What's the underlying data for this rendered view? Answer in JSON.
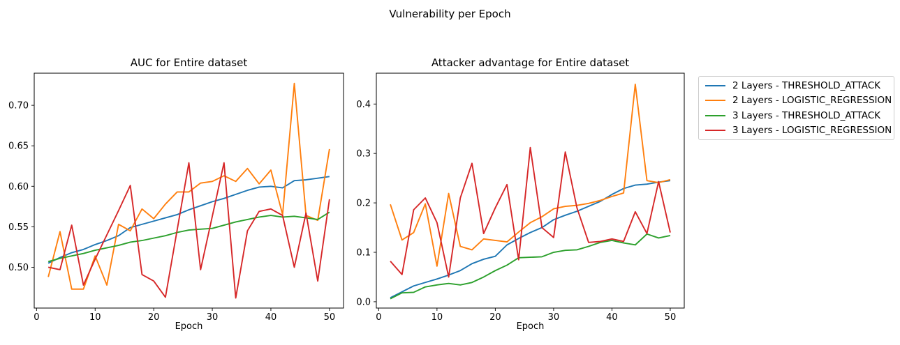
{
  "figure": {
    "suptitle": "Vulnerability per Epoch",
    "background": "#ffffff"
  },
  "legend": {
    "entries": [
      {
        "label": "2 Layers - THRESHOLD_ATTACK",
        "color": "#1f77b4"
      },
      {
        "label": "2 Layers - LOGISTIC_REGRESSION",
        "color": "#ff7f0e"
      },
      {
        "label": "3 Layers - THRESHOLD_ATTACK",
        "color": "#2ca02c"
      },
      {
        "label": "3 Layers - LOGISTIC_REGRESSION",
        "color": "#d62728"
      }
    ]
  },
  "chart_data": [
    {
      "type": "line",
      "title": "AUC for Entire dataset",
      "xlabel": "Epoch",
      "grid": false,
      "x": [
        2,
        4,
        6,
        8,
        10,
        12,
        14,
        16,
        18,
        20,
        22,
        24,
        26,
        28,
        30,
        32,
        34,
        36,
        38,
        40,
        42,
        44,
        46,
        48,
        50
      ],
      "xlim": [
        -0.4,
        52.4
      ],
      "ylim": [
        0.4496,
        0.7397
      ],
      "xticks": [
        0,
        10,
        20,
        30,
        40,
        50
      ],
      "yticks": [
        0.5,
        0.55,
        0.6,
        0.65,
        0.7
      ],
      "ytick_labels": [
        "0.50",
        "0.55",
        "0.60",
        "0.65",
        "0.70"
      ],
      "series": [
        {
          "name": "2 Layers - THRESHOLD_ATTACK",
          "color": "#1f77b4",
          "values": [
            0.505,
            0.512,
            0.518,
            0.522,
            0.528,
            0.533,
            0.539,
            0.549,
            0.553,
            0.557,
            0.561,
            0.565,
            0.571,
            0.576,
            0.581,
            0.585,
            0.59,
            0.595,
            0.599,
            0.6,
            0.598,
            0.607,
            0.608,
            0.61,
            0.612
          ]
        },
        {
          "name": "2 Layers - LOGISTIC_REGRESSION",
          "color": "#ff7f0e",
          "values": [
            0.488,
            0.544,
            0.473,
            0.473,
            0.514,
            0.478,
            0.553,
            0.545,
            0.572,
            0.56,
            0.578,
            0.593,
            0.593,
            0.604,
            0.606,
            0.613,
            0.606,
            0.622,
            0.603,
            0.62,
            0.565,
            0.727,
            0.564,
            0.558,
            0.646
          ]
        },
        {
          "name": "3 Layers - THRESHOLD_ATTACK",
          "color": "#2ca02c",
          "values": [
            0.507,
            0.511,
            0.514,
            0.517,
            0.521,
            0.524,
            0.527,
            0.531,
            0.533,
            0.536,
            0.539,
            0.543,
            0.546,
            0.547,
            0.548,
            0.552,
            0.556,
            0.559,
            0.562,
            0.564,
            0.562,
            0.563,
            0.561,
            0.559,
            0.568
          ]
        },
        {
          "name": "3 Layers - LOGISTIC_REGRESSION",
          "color": "#d62728",
          "values": [
            0.5,
            0.497,
            0.552,
            0.478,
            0.51,
            0.54,
            0.57,
            0.601,
            0.491,
            0.483,
            0.463,
            0.546,
            0.629,
            0.497,
            0.563,
            0.629,
            0.462,
            0.545,
            0.569,
            0.572,
            0.564,
            0.5,
            0.567,
            0.483,
            0.584
          ]
        }
      ]
    },
    {
      "type": "line",
      "title": "Attacker advantage for Entire dataset",
      "xlabel": "Epoch",
      "grid": false,
      "x": [
        2,
        4,
        6,
        8,
        10,
        12,
        14,
        16,
        18,
        20,
        22,
        24,
        26,
        28,
        30,
        32,
        34,
        36,
        38,
        40,
        42,
        44,
        46,
        48,
        50
      ],
      "xlim": [
        -0.4,
        52.4
      ],
      "ylim": [
        -0.0128,
        0.4624
      ],
      "xticks": [
        0,
        10,
        20,
        30,
        40,
        50
      ],
      "yticks": [
        0.0,
        0.1,
        0.2,
        0.3,
        0.4
      ],
      "ytick_labels": [
        "0.0",
        "0.1",
        "0.2",
        "0.3",
        "0.4"
      ],
      "series": [
        {
          "name": "2 Layers - THRESHOLD_ATTACK",
          "color": "#1f77b4",
          "values": [
            0.008,
            0.02,
            0.032,
            0.039,
            0.046,
            0.054,
            0.063,
            0.077,
            0.086,
            0.092,
            0.115,
            0.128,
            0.14,
            0.15,
            0.166,
            0.175,
            0.183,
            0.193,
            0.203,
            0.217,
            0.229,
            0.236,
            0.238,
            0.242,
            0.245
          ]
        },
        {
          "name": "2 Layers - LOGISTIC_REGRESSION",
          "color": "#ff7f0e",
          "values": [
            0.197,
            0.125,
            0.14,
            0.198,
            0.072,
            0.219,
            0.112,
            0.105,
            0.127,
            0.124,
            0.121,
            0.141,
            0.16,
            0.172,
            0.188,
            0.193,
            0.195,
            0.199,
            0.205,
            0.213,
            0.22,
            0.44,
            0.245,
            0.241,
            0.247
          ]
        },
        {
          "name": "3 Layers - THRESHOLD_ATTACK",
          "color": "#2ca02c",
          "values": [
            0.006,
            0.018,
            0.019,
            0.03,
            0.034,
            0.037,
            0.034,
            0.039,
            0.05,
            0.063,
            0.074,
            0.089,
            0.09,
            0.091,
            0.1,
            0.104,
            0.105,
            0.112,
            0.12,
            0.124,
            0.119,
            0.115,
            0.137,
            0.129,
            0.134
          ]
        },
        {
          "name": "3 Layers - LOGISTIC_REGRESSION",
          "color": "#d62728",
          "values": [
            0.082,
            0.055,
            0.186,
            0.21,
            0.16,
            0.05,
            0.21,
            0.28,
            0.138,
            0.19,
            0.237,
            0.085,
            0.312,
            0.15,
            0.13,
            0.303,
            0.19,
            0.12,
            0.122,
            0.127,
            0.122,
            0.182,
            0.138,
            0.243,
            0.14
          ]
        }
      ]
    }
  ]
}
